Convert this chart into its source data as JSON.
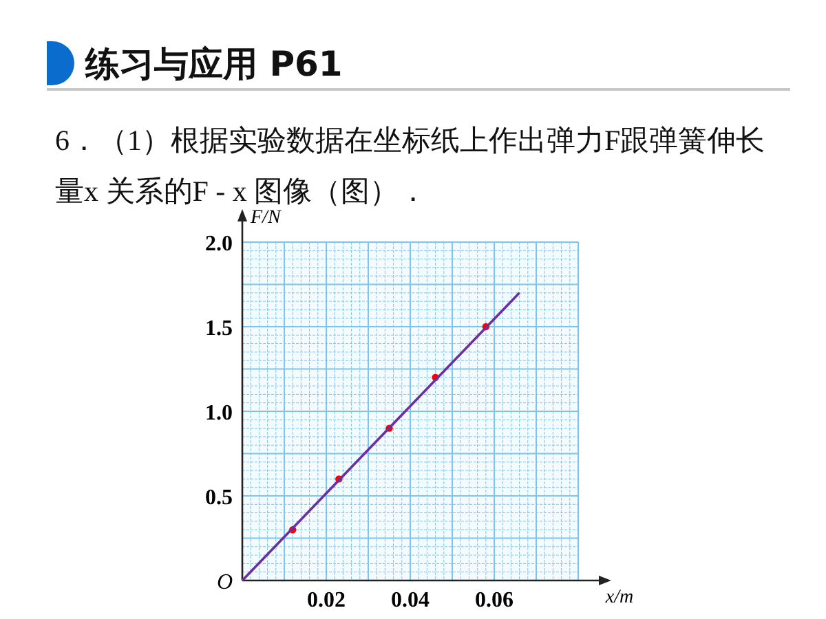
{
  "chart_data": {
    "type": "scatter",
    "title": "练习与应用 P61",
    "subtitle": "6．（1）根据实验数据在坐标纸上作出弹力F跟弹簧伸长量x 关系的F - x 图像（图）．",
    "xlabel": "x/m",
    "ylabel": "F/N",
    "annotations": [
      "O"
    ],
    "series": [
      {
        "marker": "circle",
        "color": "#ff0000",
        "x": [
          0.012,
          0.023,
          0.035,
          0.046,
          0.058
        ],
        "values": [
          0.3,
          0.6,
          0.9,
          1.2,
          1.5
        ]
      },
      {
        "type": "line",
        "marker": "none",
        "color": "#6a2fa0",
        "x": [
          0,
          0.066
        ],
        "values": [
          0,
          1.7
        ]
      }
    ],
    "xlim": [
      0,
      0.08
    ],
    "ylim": [
      0,
      2.0
    ],
    "xticks": [
      {
        "value": 0,
        "label": null
      },
      {
        "value": 0.002,
        "label": null
      },
      {
        "value": 0.004,
        "label": null
      },
      {
        "value": 0.006,
        "label": null
      },
      {
        "value": 0.008,
        "label": null
      },
      {
        "value": 0.01,
        "label": null
      },
      {
        "value": 0.012,
        "label": null
      },
      {
        "value": 0.014,
        "label": null
      },
      {
        "value": 0.016,
        "label": null
      },
      {
        "value": 0.018,
        "label": null
      },
      0.02,
      {
        "value": 0.022,
        "label": null
      },
      {
        "value": 0.024,
        "label": null
      },
      {
        "value": 0.026,
        "label": null
      },
      {
        "value": 0.028,
        "label": null
      },
      {
        "value": 0.03,
        "label": null
      },
      {
        "value": 0.032,
        "label": null
      },
      {
        "value": 0.034,
        "label": null
      },
      {
        "value": 0.036,
        "label": null
      },
      {
        "value": 0.038,
        "label": null
      },
      0.04,
      {
        "value": 0.042,
        "label": null
      },
      {
        "value": 0.044,
        "label": null
      },
      {
        "value": 0.046,
        "label": null
      },
      {
        "value": 0.048,
        "label": null
      },
      {
        "value": 0.05,
        "label": null
      },
      {
        "value": 0.052,
        "label": null
      },
      {
        "value": 0.054,
        "label": null
      },
      {
        "value": 0.056,
        "label": null
      },
      {
        "value": 0.058,
        "label": null
      },
      0.06,
      {
        "value": 0.062,
        "label": null
      },
      {
        "value": 0.064,
        "label": null
      },
      {
        "value": 0.066,
        "label": null
      },
      {
        "value": 0.068,
        "label": null
      },
      {
        "value": 0.07,
        "label": null
      },
      {
        "value": 0.072,
        "label": null
      },
      {
        "value": 0.074,
        "label": null
      },
      {
        "value": 0.076,
        "label": null
      },
      {
        "value": 0.078,
        "label": null
      },
      {
        "value": 0.08,
        "label": null
      }
    ],
    "yticks": [
      {
        "value": 0,
        "label": null
      },
      {
        "value": 0.05,
        "label": null
      },
      {
        "value": 0.1,
        "label": null
      },
      {
        "value": 0.15,
        "label": null
      },
      {
        "value": 0.2,
        "label": null
      },
      {
        "value": 0.25,
        "label": null
      },
      {
        "value": 0.3,
        "label": null
      },
      {
        "value": 0.35,
        "label": null
      },
      {
        "value": 0.4,
        "label": null
      },
      {
        "value": 0.45,
        "label": null
      },
      0.5,
      {
        "value": 0.55,
        "label": null
      },
      {
        "value": 0.6,
        "label": null
      },
      {
        "value": 0.65,
        "label": null
      },
      {
        "value": 0.7,
        "label": null
      },
      {
        "value": 0.75,
        "label": null
      },
      {
        "value": 0.8,
        "label": null
      },
      {
        "value": 0.85,
        "label": null
      },
      {
        "value": 0.9,
        "label": null
      },
      {
        "value": 0.95,
        "label": null
      },
      {
        "value": 1,
        "label": "1.0"
      },
      {
        "value": 1.05,
        "label": null
      },
      {
        "value": 1.1,
        "label": null
      },
      {
        "value": 1.15,
        "label": null
      },
      {
        "value": 1.2,
        "label": null
      },
      {
        "value": 1.25,
        "label": null
      },
      {
        "value": 1.3,
        "label": null
      },
      {
        "value": 1.35,
        "label": null
      },
      {
        "value": 1.4,
        "label": null
      },
      {
        "value": 1.45,
        "label": null
      },
      1.5,
      {
        "value": 1.55,
        "label": null
      },
      {
        "value": 1.6,
        "label": null
      },
      {
        "value": 1.65,
        "label": null
      },
      {
        "value": 1.7,
        "label": null
      },
      {
        "value": 1.75,
        "label": null
      },
      {
        "value": 1.8,
        "label": null
      },
      {
        "value": 1.85,
        "label": null
      },
      {
        "value": 1.9,
        "label": null
      },
      {
        "value": 1.95,
        "label": null
      },
      {
        "value": 2,
        "label": "2.0"
      }
    ],
    "grid": true
  }
}
